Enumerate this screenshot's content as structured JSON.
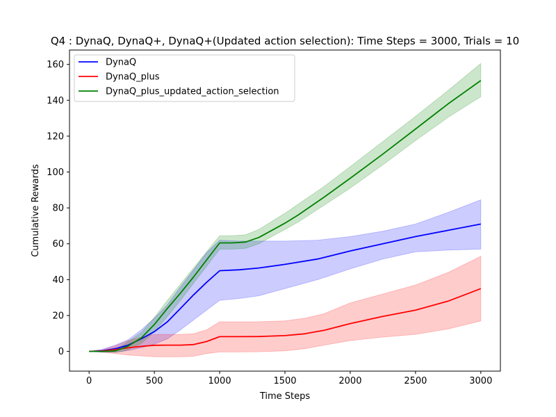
{
  "chart_data": {
    "type": "line",
    "title": "Q4 : DynaQ, DynaQ+, DynaQ+(Updated action selection): Time Steps = 3000, Trials = 10",
    "xlabel": "Time Steps",
    "ylabel": "Cumulative Rewards",
    "xlim": [
      -150,
      3150
    ],
    "ylim": [
      -11,
      168
    ],
    "xticks": [
      0,
      500,
      1000,
      1500,
      2000,
      2500,
      3000
    ],
    "yticks": [
      0,
      20,
      40,
      60,
      80,
      100,
      120,
      140,
      160
    ],
    "grid": false,
    "legend_position": "top-left",
    "series": [
      {
        "name": "DynaQ",
        "color": "#0000ff",
        "band_color": "#0000ff",
        "x": [
          0,
          100,
          200,
          300,
          400,
          500,
          600,
          700,
          800,
          900,
          1000,
          1150,
          1300,
          1500,
          1750,
          2000,
          2250,
          2500,
          2750,
          3000
        ],
        "mean": [
          0,
          0.3,
          1.5,
          3.5,
          7,
          11,
          16.5,
          24,
          31.5,
          38.5,
          45,
          45.5,
          46.5,
          48.5,
          51.5,
          56,
          60,
          64,
          67.5,
          71
        ],
        "lower": [
          0,
          -0.5,
          -0.5,
          0.5,
          2,
          4,
          7,
          12,
          17.5,
          23,
          28.5,
          29.5,
          31,
          35,
          40,
          46,
          51.5,
          55.5,
          56.5,
          57
        ],
        "upper": [
          0,
          1.2,
          3.5,
          6.5,
          12,
          18.5,
          26,
          36,
          45.5,
          55,
          62,
          61.5,
          61.5,
          61.5,
          62,
          64,
          67,
          71,
          77.5,
          84.5
        ]
      },
      {
        "name": "DynaQ_plus",
        "color": "#ff0000",
        "band_color": "#ff0000",
        "x": [
          0,
          100,
          200,
          300,
          400,
          500,
          600,
          700,
          800,
          900,
          1000,
          1150,
          1300,
          1500,
          1650,
          1800,
          2000,
          2250,
          2500,
          2750,
          3000
        ],
        "mean": [
          0,
          0.2,
          1,
          2,
          2.8,
          3.4,
          3.5,
          3.5,
          3.8,
          5.5,
          8.2,
          8.2,
          8.3,
          8.8,
          9.8,
          11.8,
          15.5,
          19.5,
          23,
          28,
          35
        ],
        "lower": [
          0,
          -0.4,
          -1.2,
          -2,
          -2.5,
          -3,
          -3,
          -3,
          -2.7,
          -1.2,
          -0.3,
          -0.3,
          -0.2,
          0.3,
          1.5,
          3.5,
          6,
          8,
          9.5,
          12.5,
          17
        ],
        "upper": [
          0,
          0.8,
          3,
          6,
          8,
          9.5,
          9.5,
          9.5,
          9.8,
          12,
          16.5,
          16.5,
          16.5,
          17,
          18.5,
          21,
          27,
          32,
          37,
          44,
          53
        ]
      },
      {
        "name": "DynaQ_plus_updated_action_selection",
        "color": "#008000",
        "band_color": "#008000",
        "x": [
          0,
          100,
          200,
          250,
          300,
          400,
          500,
          600,
          700,
          800,
          900,
          1000,
          1100,
          1200,
          1300,
          1400,
          1500,
          1600,
          1800,
          2000,
          2250,
          2500,
          2750,
          3000
        ],
        "mean": [
          0,
          0,
          0.3,
          1.5,
          3,
          7.5,
          15,
          24,
          32.5,
          41.5,
          51,
          60.5,
          60.5,
          61,
          63.5,
          67.5,
          71.5,
          76,
          86,
          96.5,
          110,
          124,
          138,
          151
        ],
        "lower": [
          0,
          -0.3,
          -0.5,
          0,
          1,
          4.5,
          11,
          19.5,
          28.5,
          38,
          47.5,
          57,
          57,
          57.5,
          60,
          64,
          68,
          72,
          81.5,
          91,
          104,
          117.5,
          130.5,
          142
        ],
        "upper": [
          0,
          0.3,
          1.3,
          3,
          5.5,
          10.5,
          19,
          28.5,
          37.5,
          46.5,
          55.5,
          64.5,
          64.5,
          65,
          68,
          72.5,
          77,
          82,
          92,
          103,
          117,
          131,
          145.5,
          160.5
        ]
      }
    ]
  }
}
